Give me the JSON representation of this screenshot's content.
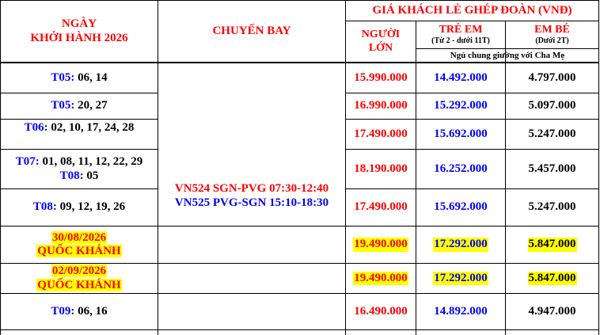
{
  "header": {
    "date_col_line1": "NGÀY",
    "date_col_line2": "KHỞI HÀNH 2026",
    "flight_col": "CHUYẾN BAY",
    "price_group": "GIÁ KHÁCH LẺ GHÉP ĐOÀN (VNĐ)",
    "adult_line1": "NGƯỜI",
    "adult_line2": "LỚN",
    "child_title": "TRẺ EM",
    "child_sub": "(Từ 2 - dưới 11T)",
    "baby_title": "EM BÉ",
    "baby_sub": "(Dưới 2T)",
    "shared_bed_note": "Ngủ chung giường với Cha Mẹ"
  },
  "flights": {
    "line1": "VN524 SGN-PVG 07:30-12:40",
    "line2": "VN525 PVG-SGN 15:10-18:30"
  },
  "rows": [
    {
      "month1": "T05:",
      "days1": " 06, 14",
      "adult": "15.990.000",
      "child": "14.492.000",
      "baby": "4.797.000"
    },
    {
      "month1": "T05:",
      "days1": " 20, 27",
      "adult": "16.990.000",
      "child": "15.292.000",
      "baby": "5.097.000"
    },
    {
      "month1": "T06:",
      "days1": " 02, 10, 17, 24, 28",
      "adult": "17.490.000",
      "child": "15.692.000",
      "baby": "5.247.000"
    },
    {
      "month1": "T07:",
      "days1": " 01, 08, 11, 12, 22, 29",
      "month2": "T08:",
      "days2": " 05",
      "adult": "18.190.000",
      "child": "16.252.000",
      "baby": "5.457.000"
    },
    {
      "month1": "T08:",
      "days1": " 09, 12, 19, 26",
      "adult": "17.490.000",
      "child": "15.692.000",
      "baby": "5.247.000"
    },
    {
      "date": "30/08/2026",
      "holiday": "QUỐC KHÁNH",
      "adult": "19.490.000",
      "child": "17.292.000",
      "baby": "5.847.000"
    },
    {
      "date": "02/09/2026",
      "holiday": "QUỐC KHÁNH",
      "adult": "19.490.000",
      "child": "17.292.000",
      "baby": "5.847.000"
    },
    {
      "month1": "T09:",
      "days1": " 06, 16",
      "adult": "16.490.000",
      "child": "14.892.000",
      "baby": "4.947.000"
    }
  ]
}
